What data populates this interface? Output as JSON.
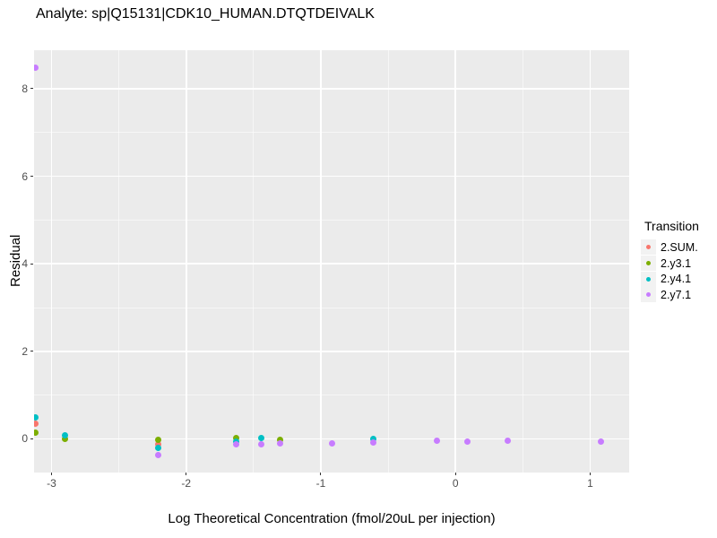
{
  "colors": {
    "panel_background": "#EBEBEB",
    "gridline": "#FFFFFF",
    "legend_key_background": "#F2F2F2",
    "tick_label": "#4D4D4D",
    "text": "#000000"
  },
  "chart_data": {
    "type": "scatter",
    "title": "Analyte: sp|Q15131|CDK10_HUMAN.DTQTDEIVALK",
    "xlabel": "Log Theoretical Concentration (fmol/20uL per injection)",
    "ylabel": "Residual",
    "xlim": [
      -3.13,
      1.29
    ],
    "ylim": [
      -0.77,
      8.88
    ],
    "x_ticks": [
      "-3",
      "-2",
      "-1",
      "0",
      "1"
    ],
    "x_tick_values": [
      -3,
      -2,
      -1,
      0,
      1
    ],
    "y_ticks": [
      "0",
      "2",
      "4",
      "6",
      "8"
    ],
    "y_tick_values": [
      0,
      2,
      4,
      6,
      8
    ],
    "x_minor_values": [
      -2.5,
      -1.5,
      -0.5,
      0.5
    ],
    "y_minor_values": [
      1,
      3,
      5,
      7
    ],
    "grid": true,
    "legend_title": "Transition",
    "legend_position": "right",
    "series": [
      {
        "name": "2.SUM.",
        "color": "#F8766D",
        "points": [
          [
            -3.12,
            0.35
          ],
          [
            -2.21,
            -0.12
          ]
        ]
      },
      {
        "name": "2.y3.1",
        "color": "#7CAE00",
        "points": [
          [
            -3.12,
            0.14
          ],
          [
            -2.9,
            0.0
          ],
          [
            -2.21,
            -0.03
          ],
          [
            -1.63,
            0.01
          ],
          [
            -1.3,
            -0.02
          ]
        ]
      },
      {
        "name": "2.y4.1",
        "color": "#00BFC4",
        "points": [
          [
            -3.12,
            0.5
          ],
          [
            -2.9,
            0.09
          ],
          [
            -2.21,
            -0.21
          ],
          [
            -1.63,
            -0.07
          ],
          [
            -1.44,
            0.01
          ],
          [
            -0.61,
            -0.01
          ]
        ]
      },
      {
        "name": "2.y7.1",
        "color": "#C77CFF",
        "points": [
          [
            -3.12,
            8.49
          ],
          [
            -2.21,
            -0.38
          ],
          [
            -1.63,
            -0.13
          ],
          [
            -1.44,
            -0.13
          ],
          [
            -1.3,
            -0.1
          ],
          [
            -0.92,
            -0.1
          ],
          [
            -0.61,
            -0.08
          ],
          [
            -0.14,
            -0.05
          ],
          [
            0.09,
            -0.06
          ],
          [
            0.39,
            -0.05
          ],
          [
            1.08,
            -0.06
          ]
        ]
      }
    ]
  }
}
